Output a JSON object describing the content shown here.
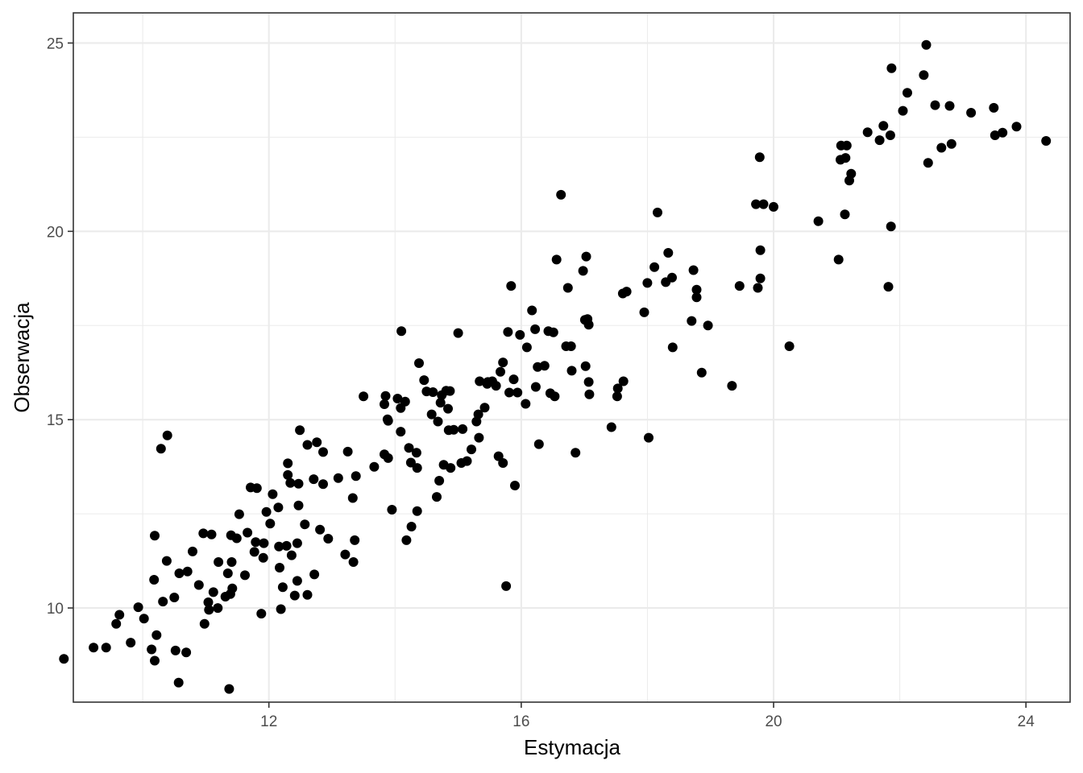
{
  "chart_data": {
    "type": "scatter",
    "title": "",
    "xlabel": "Estymacja",
    "ylabel": "Obserwacja",
    "xlim": [
      8.9,
      24.7
    ],
    "ylim": [
      7.5,
      25.8
    ],
    "x_ticks": [
      12,
      16,
      20,
      24
    ],
    "x_tick_labels": [
      "12",
      "16",
      "20",
      "24"
    ],
    "x_minor": [
      10,
      14,
      18,
      22
    ],
    "y_ticks": [
      10,
      15,
      20,
      25
    ],
    "y_tick_labels": [
      "10",
      "15",
      "20",
      "25"
    ],
    "y_minor": [
      7.5,
      12.5,
      17.5,
      22.5
    ],
    "grid": true,
    "legend": "none",
    "point_color": "#000000",
    "points": [
      [
        8.75,
        8.65
      ],
      [
        9.22,
        8.95
      ],
      [
        9.42,
        8.95
      ],
      [
        9.58,
        9.58
      ],
      [
        9.63,
        9.82
      ],
      [
        9.81,
        9.08
      ],
      [
        9.93,
        10.02
      ],
      [
        10.02,
        9.72
      ],
      [
        10.14,
        8.9
      ],
      [
        10.19,
        8.6
      ],
      [
        10.22,
        9.28
      ],
      [
        10.18,
        10.75
      ],
      [
        10.19,
        11.92
      ],
      [
        10.29,
        14.23
      ],
      [
        10.32,
        10.17
      ],
      [
        10.38,
        11.25
      ],
      [
        10.39,
        14.58
      ],
      [
        10.5,
        10.28
      ],
      [
        10.52,
        8.87
      ],
      [
        10.57,
        8.02
      ],
      [
        10.58,
        10.92
      ],
      [
        10.69,
        8.82
      ],
      [
        10.71,
        10.97
      ],
      [
        10.79,
        11.5
      ],
      [
        10.89,
        10.61
      ],
      [
        10.96,
        11.98
      ],
      [
        10.98,
        9.58
      ],
      [
        11.04,
        10.15
      ],
      [
        11.05,
        9.95
      ],
      [
        11.09,
        11.95
      ],
      [
        11.12,
        10.42
      ],
      [
        11.19,
        10.0
      ],
      [
        11.2,
        11.22
      ],
      [
        11.31,
        10.3
      ],
      [
        11.35,
        10.92
      ],
      [
        11.37,
        7.85
      ],
      [
        11.39,
        10.37
      ],
      [
        11.4,
        11.93
      ],
      [
        11.41,
        11.22
      ],
      [
        11.42,
        10.52
      ],
      [
        11.49,
        11.85
      ],
      [
        11.53,
        12.49
      ],
      [
        11.62,
        10.87
      ],
      [
        11.66,
        12.0
      ],
      [
        11.71,
        13.2
      ],
      [
        11.77,
        11.49
      ],
      [
        11.79,
        11.75
      ],
      [
        11.81,
        13.18
      ],
      [
        11.88,
        9.85
      ],
      [
        11.91,
        11.33
      ],
      [
        11.92,
        11.72
      ],
      [
        11.96,
        12.55
      ],
      [
        12.02,
        12.24
      ],
      [
        12.06,
        13.02
      ],
      [
        12.15,
        12.67
      ],
      [
        12.16,
        11.63
      ],
      [
        12.17,
        11.07
      ],
      [
        12.19,
        9.97
      ],
      [
        12.22,
        10.55
      ],
      [
        12.28,
        11.65
      ],
      [
        12.3,
        13.84
      ],
      [
        12.3,
        13.53
      ],
      [
        12.34,
        13.32
      ],
      [
        12.36,
        11.4
      ],
      [
        12.41,
        10.33
      ],
      [
        12.45,
        11.72
      ],
      [
        12.45,
        10.72
      ],
      [
        12.47,
        13.3
      ],
      [
        12.47,
        12.72
      ],
      [
        12.49,
        14.72
      ],
      [
        12.57,
        12.22
      ],
      [
        12.61,
        10.35
      ],
      [
        12.61,
        14.33
      ],
      [
        12.71,
        13.42
      ],
      [
        12.72,
        10.89
      ],
      [
        12.76,
        14.4
      ],
      [
        12.81,
        12.08
      ],
      [
        12.86,
        14.14
      ],
      [
        12.86,
        13.29
      ],
      [
        12.94,
        11.84
      ],
      [
        13.1,
        13.45
      ],
      [
        13.21,
        11.42
      ],
      [
        13.25,
        14.15
      ],
      [
        13.34,
        11.22
      ],
      [
        13.33,
        12.92
      ],
      [
        13.36,
        11.8
      ],
      [
        13.38,
        13.5
      ],
      [
        13.5,
        15.62
      ],
      [
        13.67,
        13.75
      ],
      [
        13.83,
        14.08
      ],
      [
        13.83,
        15.41
      ],
      [
        13.85,
        15.63
      ],
      [
        13.88,
        15.01
      ],
      [
        13.89,
        13.98
      ],
      [
        13.89,
        14.97
      ],
      [
        13.95,
        12.61
      ],
      [
        14.04,
        15.56
      ],
      [
        14.09,
        14.68
      ],
      [
        14.09,
        15.31
      ],
      [
        14.1,
        17.35
      ],
      [
        14.16,
        15.48
      ],
      [
        14.18,
        11.8
      ],
      [
        14.22,
        14.25
      ],
      [
        14.25,
        13.86
      ],
      [
        14.26,
        12.16
      ],
      [
        14.34,
        14.12
      ],
      [
        14.35,
        12.57
      ],
      [
        14.35,
        13.72
      ],
      [
        14.38,
        16.5
      ],
      [
        14.46,
        16.05
      ],
      [
        14.5,
        15.75
      ],
      [
        14.58,
        15.14
      ],
      [
        14.6,
        15.73
      ],
      [
        14.66,
        12.95
      ],
      [
        14.68,
        14.95
      ],
      [
        14.7,
        13.38
      ],
      [
        14.72,
        15.45
      ],
      [
        14.74,
        15.65
      ],
      [
        14.77,
        13.8
      ],
      [
        14.81,
        15.77
      ],
      [
        14.84,
        15.29
      ],
      [
        14.85,
        14.72
      ],
      [
        14.87,
        15.76
      ],
      [
        14.88,
        13.72
      ],
      [
        14.93,
        14.73
      ],
      [
        15.0,
        17.3
      ],
      [
        15.05,
        13.85
      ],
      [
        15.07,
        14.75
      ],
      [
        15.14,
        13.9
      ],
      [
        15.21,
        14.21
      ],
      [
        15.29,
        14.95
      ],
      [
        15.32,
        15.14
      ],
      [
        15.33,
        14.52
      ],
      [
        15.34,
        16.02
      ],
      [
        15.42,
        15.32
      ],
      [
        15.46,
        15.95
      ],
      [
        15.47,
        16.0
      ],
      [
        15.54,
        16.02
      ],
      [
        15.6,
        15.9
      ],
      [
        15.64,
        14.03
      ],
      [
        15.67,
        16.27
      ],
      [
        15.71,
        13.85
      ],
      [
        15.71,
        16.52
      ],
      [
        15.76,
        10.58
      ],
      [
        15.79,
        17.33
      ],
      [
        15.81,
        15.72
      ],
      [
        15.84,
        18.55
      ],
      [
        15.88,
        16.07
      ],
      [
        15.9,
        13.25
      ],
      [
        15.94,
        15.72
      ],
      [
        15.98,
        17.25
      ],
      [
        16.07,
        15.42
      ],
      [
        16.09,
        16.92
      ],
      [
        16.17,
        17.9
      ],
      [
        16.22,
        17.4
      ],
      [
        16.23,
        15.87
      ],
      [
        16.26,
        16.4
      ],
      [
        16.28,
        14.35
      ],
      [
        16.37,
        16.43
      ],
      [
        16.43,
        17.35
      ],
      [
        16.46,
        15.7
      ],
      [
        16.51,
        17.32
      ],
      [
        16.53,
        15.62
      ],
      [
        16.56,
        19.25
      ],
      [
        16.63,
        20.97
      ],
      [
        16.71,
        16.95
      ],
      [
        16.74,
        18.5
      ],
      [
        16.79,
        16.95
      ],
      [
        16.8,
        16.3
      ],
      [
        16.86,
        14.12
      ],
      [
        16.98,
        18.95
      ],
      [
        17.01,
        17.65
      ],
      [
        17.02,
        16.42
      ],
      [
        17.03,
        19.33
      ],
      [
        17.05,
        17.67
      ],
      [
        17.07,
        17.52
      ],
      [
        17.07,
        16.0
      ],
      [
        17.08,
        15.67
      ],
      [
        17.43,
        14.8
      ],
      [
        17.52,
        15.62
      ],
      [
        17.53,
        15.83
      ],
      [
        17.62,
        16.02
      ],
      [
        17.61,
        18.35
      ],
      [
        17.67,
        18.4
      ],
      [
        17.95,
        17.85
      ],
      [
        18.0,
        18.63
      ],
      [
        18.02,
        14.52
      ],
      [
        18.11,
        19.05
      ],
      [
        18.16,
        20.5
      ],
      [
        18.29,
        18.65
      ],
      [
        18.33,
        19.43
      ],
      [
        18.4,
        16.92
      ],
      [
        18.39,
        18.77
      ],
      [
        18.7,
        17.62
      ],
      [
        18.73,
        18.97
      ],
      [
        18.78,
        18.45
      ],
      [
        18.78,
        18.25
      ],
      [
        18.86,
        16.25
      ],
      [
        18.96,
        17.5
      ],
      [
        19.34,
        15.9
      ],
      [
        19.46,
        18.55
      ],
      [
        19.72,
        20.72
      ],
      [
        19.75,
        18.5
      ],
      [
        19.78,
        21.97
      ],
      [
        19.79,
        18.75
      ],
      [
        19.79,
        19.5
      ],
      [
        19.84,
        20.72
      ],
      [
        20.0,
        20.65
      ],
      [
        20.25,
        16.95
      ],
      [
        20.71,
        20.27
      ],
      [
        21.03,
        19.25
      ],
      [
        21.06,
        21.9
      ],
      [
        21.07,
        22.28
      ],
      [
        21.13,
        20.45
      ],
      [
        21.14,
        21.95
      ],
      [
        21.16,
        22.28
      ],
      [
        21.2,
        21.35
      ],
      [
        21.23,
        21.53
      ],
      [
        21.49,
        22.63
      ],
      [
        21.68,
        22.42
      ],
      [
        21.74,
        22.8
      ],
      [
        21.82,
        18.53
      ],
      [
        21.85,
        22.55
      ],
      [
        21.87,
        24.33
      ],
      [
        21.86,
        20.13
      ],
      [
        22.05,
        23.2
      ],
      [
        22.12,
        23.68
      ],
      [
        22.38,
        24.15
      ],
      [
        22.42,
        24.95
      ],
      [
        22.45,
        21.82
      ],
      [
        22.56,
        23.35
      ],
      [
        22.66,
        22.22
      ],
      [
        22.79,
        23.33
      ],
      [
        22.82,
        22.32
      ],
      [
        23.13,
        23.15
      ],
      [
        23.49,
        23.28
      ],
      [
        23.51,
        22.55
      ],
      [
        23.63,
        22.62
      ],
      [
        23.85,
        22.78
      ],
      [
        24.32,
        22.4
      ]
    ]
  }
}
